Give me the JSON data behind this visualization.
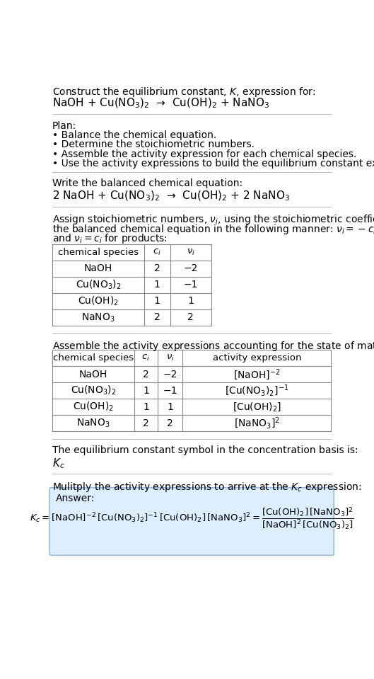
{
  "title_line1": "Construct the equilibrium constant, $K$, expression for:",
  "title_line2": "NaOH + Cu(NO$_3$)$_2$  →  Cu(OH)$_2$ + NaNO$_3$",
  "plan_header": "Plan:",
  "plan_items": [
    "• Balance the chemical equation.",
    "• Determine the stoichiometric numbers.",
    "• Assemble the activity expression for each chemical species.",
    "• Use the activity expressions to build the equilibrium constant expression."
  ],
  "balanced_header": "Write the balanced chemical equation:",
  "balanced_eq": "2 NaOH + Cu(NO$_3$)$_2$  →  Cu(OH)$_2$ + 2 NaNO$_3$",
  "stoich_header_parts": [
    "Assign stoichiometric numbers, $\\nu_i$, using the stoichiometric coefficients, $c_i$, from",
    "the balanced chemical equation in the following manner: $\\nu_i = -c_i$ for reactants",
    "and $\\nu_i = c_i$ for products:"
  ],
  "table1_headers": [
    "chemical species",
    "$c_i$",
    "$\\nu_i$"
  ],
  "table1_rows": [
    [
      "NaOH",
      "2",
      "−2"
    ],
    [
      "Cu(NO$_3$)$_2$",
      "1",
      "−1"
    ],
    [
      "Cu(OH)$_2$",
      "1",
      "1"
    ],
    [
      "NaNO$_3$",
      "2",
      "2"
    ]
  ],
  "activity_header": "Assemble the activity expressions accounting for the state of matter and $\\nu_i$:",
  "table2_headers": [
    "chemical species",
    "$c_i$",
    "$\\nu_i$",
    "activity expression"
  ],
  "table2_rows": [
    [
      "NaOH",
      "2",
      "−2",
      "[NaOH]$^{-2}$"
    ],
    [
      "Cu(NO$_3$)$_2$",
      "1",
      "−1",
      "[Cu(NO$_3$)$_2$]$^{-1}$"
    ],
    [
      "Cu(OH)$_2$",
      "1",
      "1",
      "[Cu(OH)$_2$]"
    ],
    [
      "NaNO$_3$",
      "2",
      "2",
      "[NaNO$_3$]$^2$"
    ]
  ],
  "kc_header": "The equilibrium constant symbol in the concentration basis is:",
  "kc_symbol": "$K_c$",
  "multiply_header": "Mulitply the activity expressions to arrive at the $K_c$ expression:",
  "answer_label": "Answer:",
  "answer_box_color": "#ddeeff",
  "answer_border_color": "#99bbdd",
  "bg_color": "#ffffff",
  "text_color": "#000000"
}
